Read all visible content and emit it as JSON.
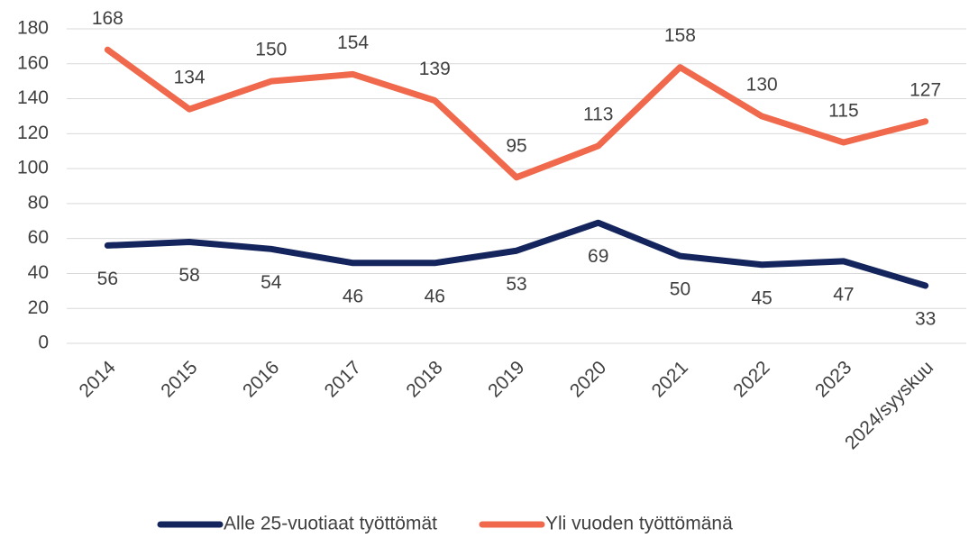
{
  "chart_data": {
    "type": "line",
    "categories": [
      "2014",
      "2015",
      "2016",
      "2017",
      "2018",
      "2019",
      "2020",
      "2021",
      "2022",
      "2023",
      "2024/syyskuu"
    ],
    "series": [
      {
        "name": "Alle 25-vuotiaat työttömät",
        "color": "#14245c",
        "values": [
          56,
          58,
          54,
          46,
          46,
          53,
          69,
          50,
          45,
          47,
          33
        ]
      },
      {
        "name": "Yli vuoden työttömänä",
        "color": "#f0694c",
        "values": [
          168,
          134,
          150,
          154,
          139,
          95,
          113,
          158,
          130,
          115,
          127
        ]
      }
    ],
    "ylim": [
      0,
      180
    ],
    "yticks": [
      0,
      20,
      40,
      60,
      80,
      100,
      120,
      140,
      160,
      180
    ],
    "grid": true,
    "legend": "bottom"
  }
}
